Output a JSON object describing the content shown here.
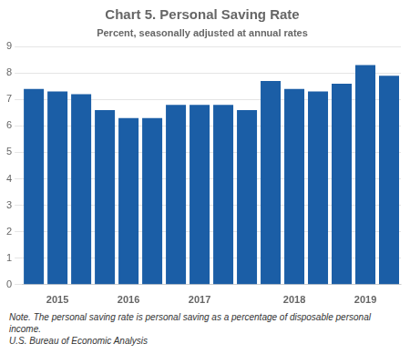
{
  "chart_data": {
    "type": "bar",
    "title": "Chart 5. Personal Saving Rate",
    "subtitle": "Percent, seasonally adjusted at annual rates",
    "annotations": [
      "Note. The personal saving rate is personal saving as a percentage of disposable personal income.",
      "U.S. Bureau of Economic Analysis"
    ],
    "categories": [
      null,
      "2015",
      null,
      null,
      "2016",
      null,
      null,
      "2017",
      null,
      null,
      null,
      "2018",
      null,
      null,
      "2019",
      null
    ],
    "values": [
      7.4,
      7.3,
      7.2,
      6.6,
      6.3,
      6.3,
      6.8,
      6.8,
      6.8,
      6.6,
      7.7,
      7.4,
      7.3,
      7.6,
      8.3,
      7.9
    ],
    "color": "#1b5ea6",
    "ylim": [
      0,
      9
    ],
    "yticks": [
      0,
      1,
      2,
      3,
      4,
      5,
      6,
      7,
      8,
      9
    ],
    "grid": true
  }
}
